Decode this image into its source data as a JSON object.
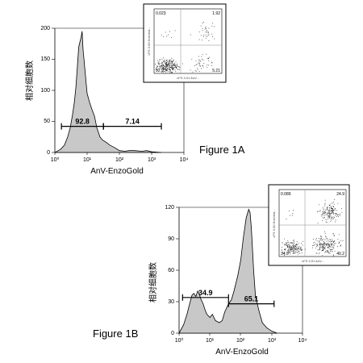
{
  "chart_data": [
    {
      "type": "area",
      "figure_label": "Figure 1A",
      "xlabel": "AnV-EnzoGold",
      "ylabel": "相对细胞数",
      "xscale": "log",
      "xlim": [
        1,
        10000
      ],
      "ylim": [
        0,
        200
      ],
      "x_ticks": [
        "10⁰",
        "10¹",
        "10²",
        "10³",
        "10⁴"
      ],
      "y_ticks": [
        "0",
        "50",
        "100",
        "150",
        "200"
      ],
      "histogram": {
        "x": [
          1,
          1.5,
          2,
          2.5,
          3,
          3.5,
          4,
          4.5,
          5,
          5.5,
          6,
          6.5,
          7,
          7.5,
          8,
          9,
          10,
          12,
          14,
          17,
          20,
          25,
          30,
          40,
          50,
          70,
          100,
          150,
          200,
          300,
          500,
          700,
          1000,
          2000
        ],
        "y": [
          0,
          5,
          12,
          25,
          40,
          60,
          80,
          105,
          140,
          170,
          178,
          185,
          195,
          165,
          150,
          120,
          95,
          80,
          70,
          58,
          40,
          25,
          20,
          16,
          12,
          8,
          3,
          2,
          3,
          3,
          2,
          3,
          1,
          0
        ]
      },
      "gates": [
        {
          "label": "92.8",
          "from": 1.6,
          "to": 32,
          "y": 42
        },
        {
          "label": "7.14",
          "from": 32,
          "to": 2000,
          "y": 42
        }
      ],
      "inset": {
        "quadrants": {
          "ul": "0.023",
          "ur": "1.92",
          "ll": "92.9",
          "lr": "5.21"
        },
        "x_title": "cFS 3.01 AnV...",
        "y_title": "cFS 3.00 Hoechst...",
        "dots": {
          "tl": 8,
          "tr": 35,
          "bl": 260,
          "br": 45
        }
      }
    },
    {
      "type": "area",
      "figure_label": "Figure 1B",
      "xlabel": "AnV-EnzoGold",
      "ylabel": "相对细胞数",
      "xscale": "log",
      "xlim": [
        1,
        10000
      ],
      "ylim": [
        0,
        120
      ],
      "x_ticks": [
        "10⁰",
        "10¹",
        "10²",
        "10³",
        "10⁴"
      ],
      "y_ticks": [
        "0",
        "30",
        "60",
        "90",
        "120"
      ],
      "histogram": {
        "x": [
          1,
          1.4,
          1.8,
          2.2,
          2.6,
          3,
          3.5,
          4,
          4.5,
          5,
          6,
          7,
          8,
          10,
          12,
          15,
          20,
          25,
          30,
          40,
          50,
          60,
          80,
          100,
          120,
          150,
          180,
          200,
          220,
          260,
          300,
          400,
          500,
          700,
          1000,
          1500
        ],
        "y": [
          0,
          8,
          18,
          28,
          36,
          38,
          35,
          40,
          38,
          33,
          28,
          22,
          18,
          15,
          18,
          12,
          10,
          12,
          20,
          28,
          32,
          40,
          55,
          70,
          90,
          110,
          118,
          115,
          100,
          60,
          35,
          20,
          10,
          5,
          2,
          0
        ]
      },
      "gates": [
        {
          "label": "34.9",
          "from": 1.3,
          "to": 40,
          "y": 34
        },
        {
          "label": "65.1",
          "from": 40,
          "to": 1200,
          "y": 28
        }
      ],
      "inset": {
        "quadrants": {
          "ul": "0.089",
          "ur": "24.9",
          "ll": "34.9",
          "lr": "40.2"
        },
        "x_title": "cFS 3.01 AnV...",
        "y_title": "cFS 3.00 Hoechst...",
        "dots": {
          "tl": 6,
          "tr": 150,
          "bl": 170,
          "br": 200
        }
      }
    }
  ]
}
